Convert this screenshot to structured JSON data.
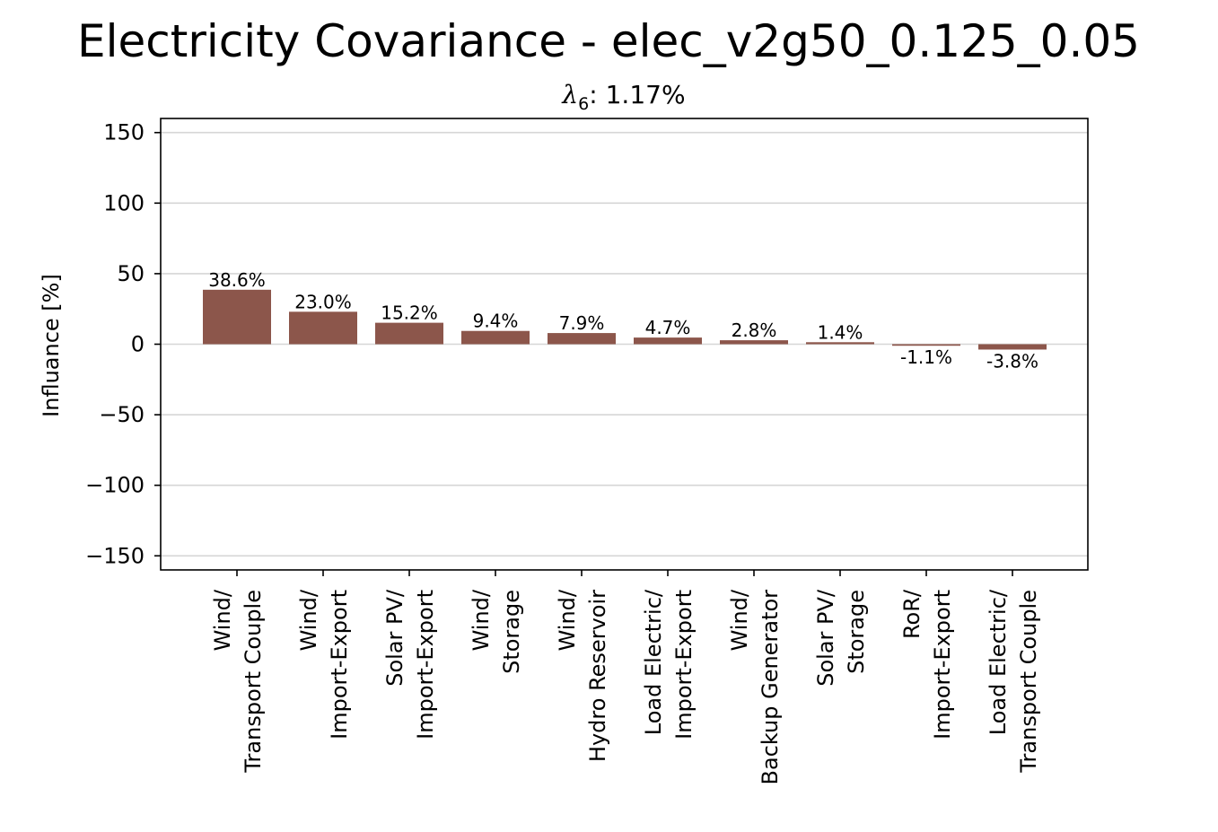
{
  "chart_data": {
    "type": "bar",
    "title": "Electricity Covariance - elec_v2g50_0.125_0.05",
    "subtitle": {
      "symbol": "λ",
      "subscript": "6",
      "text": ": 1.17%"
    },
    "xlabel": "",
    "ylabel": "Influance [%]",
    "ylim": [
      -160,
      160
    ],
    "yticks": [
      150,
      100,
      50,
      0,
      -50,
      -100,
      -150
    ],
    "ytick_labels": [
      "150",
      "100",
      "50",
      "0",
      "−50",
      "−100",
      "−150"
    ],
    "grid": "horizontal",
    "legend": "none",
    "bar_color": "#8c564b",
    "categories": [
      [
        "Wind/",
        "Transport Couple"
      ],
      [
        "Wind/",
        "Import-Export"
      ],
      [
        "Solar PV/",
        "Import-Export"
      ],
      [
        "Wind/",
        "Storage"
      ],
      [
        "Wind/",
        "Hydro Reservoir"
      ],
      [
        "Load Electric/",
        "Import-Export"
      ],
      [
        "Wind/",
        "Backup Generator"
      ],
      [
        "Solar PV/",
        "Storage"
      ],
      [
        "RoR/",
        "Import-Export"
      ],
      [
        "Load Electric/",
        "Transport Couple"
      ]
    ],
    "values": [
      38.6,
      23.0,
      15.2,
      9.4,
      7.9,
      4.7,
      2.8,
      1.4,
      -1.1,
      -3.8
    ],
    "data_labels": [
      "38.6%",
      "23.0%",
      "15.2%",
      "9.4%",
      "7.9%",
      "4.7%",
      "2.8%",
      "1.4%",
      "-1.1%",
      "-3.8%"
    ]
  }
}
